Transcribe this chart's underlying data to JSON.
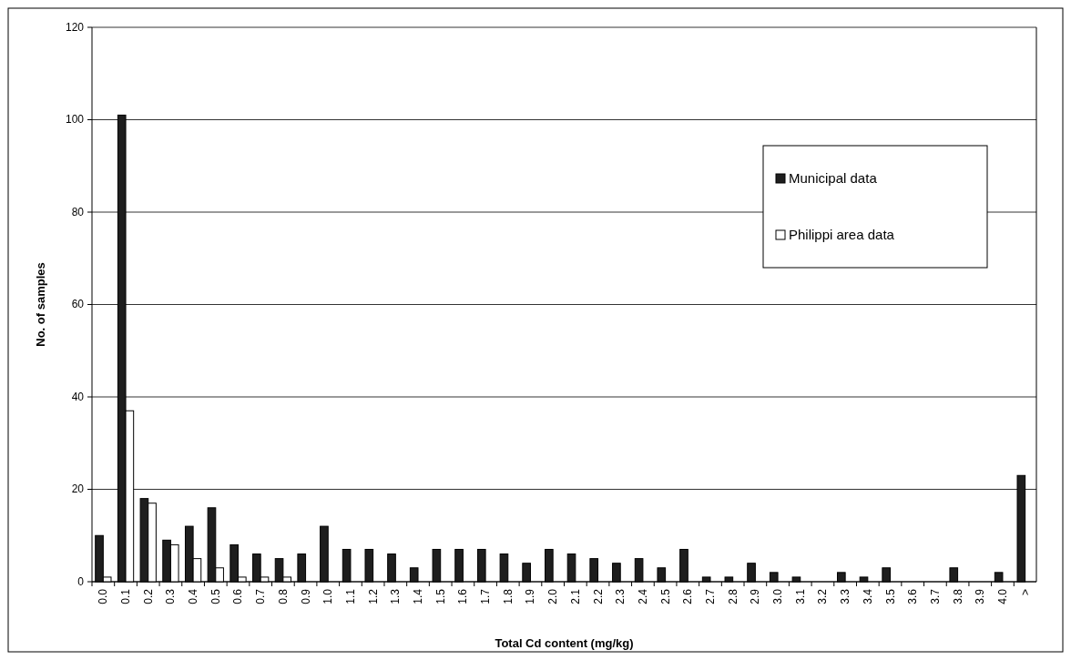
{
  "chart_data": {
    "type": "bar",
    "xlabel": "Total Cd content (mg/kg)",
    "ylabel": "No. of samples",
    "categories": [
      "0.0",
      "0.1",
      "0.2",
      "0.3",
      "0.4",
      "0.5",
      "0.6",
      "0.7",
      "0.8",
      "0.9",
      "1.0",
      "1.1",
      "1.2",
      "1.3",
      "1.4",
      "1.5",
      "1.6",
      "1.7",
      "1.8",
      "1.9",
      "2.0",
      "2.1",
      "2.2",
      "2.3",
      "2.4",
      "2.5",
      "2.6",
      "2.7",
      "2.8",
      "2.9",
      "3.0",
      "3.1",
      "3.2",
      "3.3",
      "3.4",
      "3.5",
      "3.6",
      "3.7",
      "3.8",
      "3.9",
      "4.0",
      ">"
    ],
    "series": [
      {
        "name": "Municipal data",
        "color": "#1e1e1e",
        "values": [
          10,
          101,
          18,
          9,
          12,
          16,
          8,
          6,
          5,
          6,
          12,
          7,
          7,
          6,
          3,
          7,
          7,
          7,
          6,
          4,
          7,
          6,
          5,
          4,
          5,
          3,
          7,
          1,
          1,
          4,
          2,
          1,
          0,
          2,
          1,
          3,
          0,
          0,
          3,
          0,
          2,
          23
        ]
      },
      {
        "name": "Philippi area data",
        "color": "#ffffff",
        "values": [
          1,
          37,
          17,
          8,
          5,
          3,
          1,
          1,
          1,
          0,
          0,
          0,
          0,
          0,
          0,
          0,
          0,
          0,
          0,
          0,
          0,
          0,
          0,
          0,
          0,
          0,
          0,
          0,
          0,
          0,
          0,
          0,
          0,
          0,
          0,
          0,
          0,
          0,
          0,
          0,
          0,
          0
        ]
      }
    ],
    "ylim": [
      0,
      120
    ],
    "yticks": [
      0,
      20,
      40,
      60,
      80,
      100,
      120
    ],
    "grid": "y",
    "legend": "top right"
  }
}
